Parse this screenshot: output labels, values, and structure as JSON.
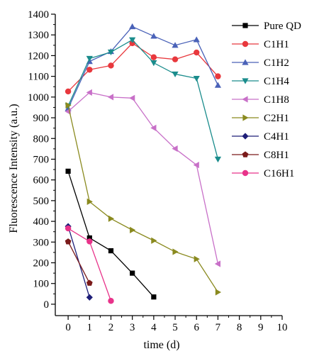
{
  "chart_data": {
    "type": "line",
    "xlabel": "time (d)",
    "ylabel": "Fluorescence Intensity (a.u.)",
    "xlim": [
      -0.6,
      10
    ],
    "ylim": [
      -55,
      1400
    ],
    "xticks": [
      "0",
      "1",
      "2",
      "3",
      "4",
      "5",
      "6",
      "7",
      "8",
      "9",
      "10"
    ],
    "yticks": [
      "0",
      "100",
      "200",
      "300",
      "400",
      "500",
      "600",
      "700",
      "800",
      "900",
      "1000",
      "1100",
      "1200",
      "1300",
      "1400"
    ],
    "legend_position": "top-right",
    "series": [
      {
        "name": "Pure QD",
        "color": "#000000",
        "marker": "square",
        "x": [
          0,
          1,
          2,
          3,
          4
        ],
        "y": [
          642,
          320,
          258,
          150,
          35
        ]
      },
      {
        "name": "C1H1",
        "color": "#e8383d",
        "marker": "circle",
        "x": [
          0,
          1,
          2,
          3,
          4,
          5,
          6,
          7
        ],
        "y": [
          1027,
          1132,
          1152,
          1260,
          1192,
          1182,
          1215,
          1100
        ]
      },
      {
        "name": "C1H2",
        "color": "#4a62b8",
        "marker": "triangle-up",
        "x": [
          0,
          1,
          2,
          3,
          4,
          5,
          6,
          7
        ],
        "y": [
          945,
          1172,
          1220,
          1340,
          1294,
          1250,
          1277,
          1057
        ]
      },
      {
        "name": "C1H4",
        "color": "#1a8c8c",
        "marker": "triangle-down",
        "x": [
          0,
          1,
          2,
          3,
          4,
          5,
          6,
          7
        ],
        "y": [
          957,
          1186,
          1217,
          1276,
          1165,
          1111,
          1090,
          700
        ]
      },
      {
        "name": "C1H8",
        "color": "#c870c8",
        "marker": "triangle-left",
        "x": [
          0,
          1,
          2,
          3,
          4,
          5,
          6,
          7
        ],
        "y": [
          930,
          1022,
          1000,
          995,
          851,
          751,
          672,
          195
        ]
      },
      {
        "name": "C2H1",
        "color": "#8a8a1f",
        "marker": "triangle-right",
        "x": [
          0,
          1,
          2,
          3,
          4,
          5,
          6,
          7
        ],
        "y": [
          960,
          495,
          413,
          358,
          307,
          253,
          218,
          58
        ]
      },
      {
        "name": "C4H1",
        "color": "#1e1e78",
        "marker": "diamond",
        "x": [
          0,
          1
        ],
        "y": [
          376,
          33
        ]
      },
      {
        "name": "C8H1",
        "color": "#7a1a1a",
        "marker": "pentagon",
        "x": [
          0,
          1
        ],
        "y": [
          302,
          102
        ]
      },
      {
        "name": "C16H1",
        "color": "#e8338a",
        "marker": "circle",
        "x": [
          0,
          1,
          2
        ],
        "y": [
          366,
          303,
          16
        ]
      }
    ]
  }
}
